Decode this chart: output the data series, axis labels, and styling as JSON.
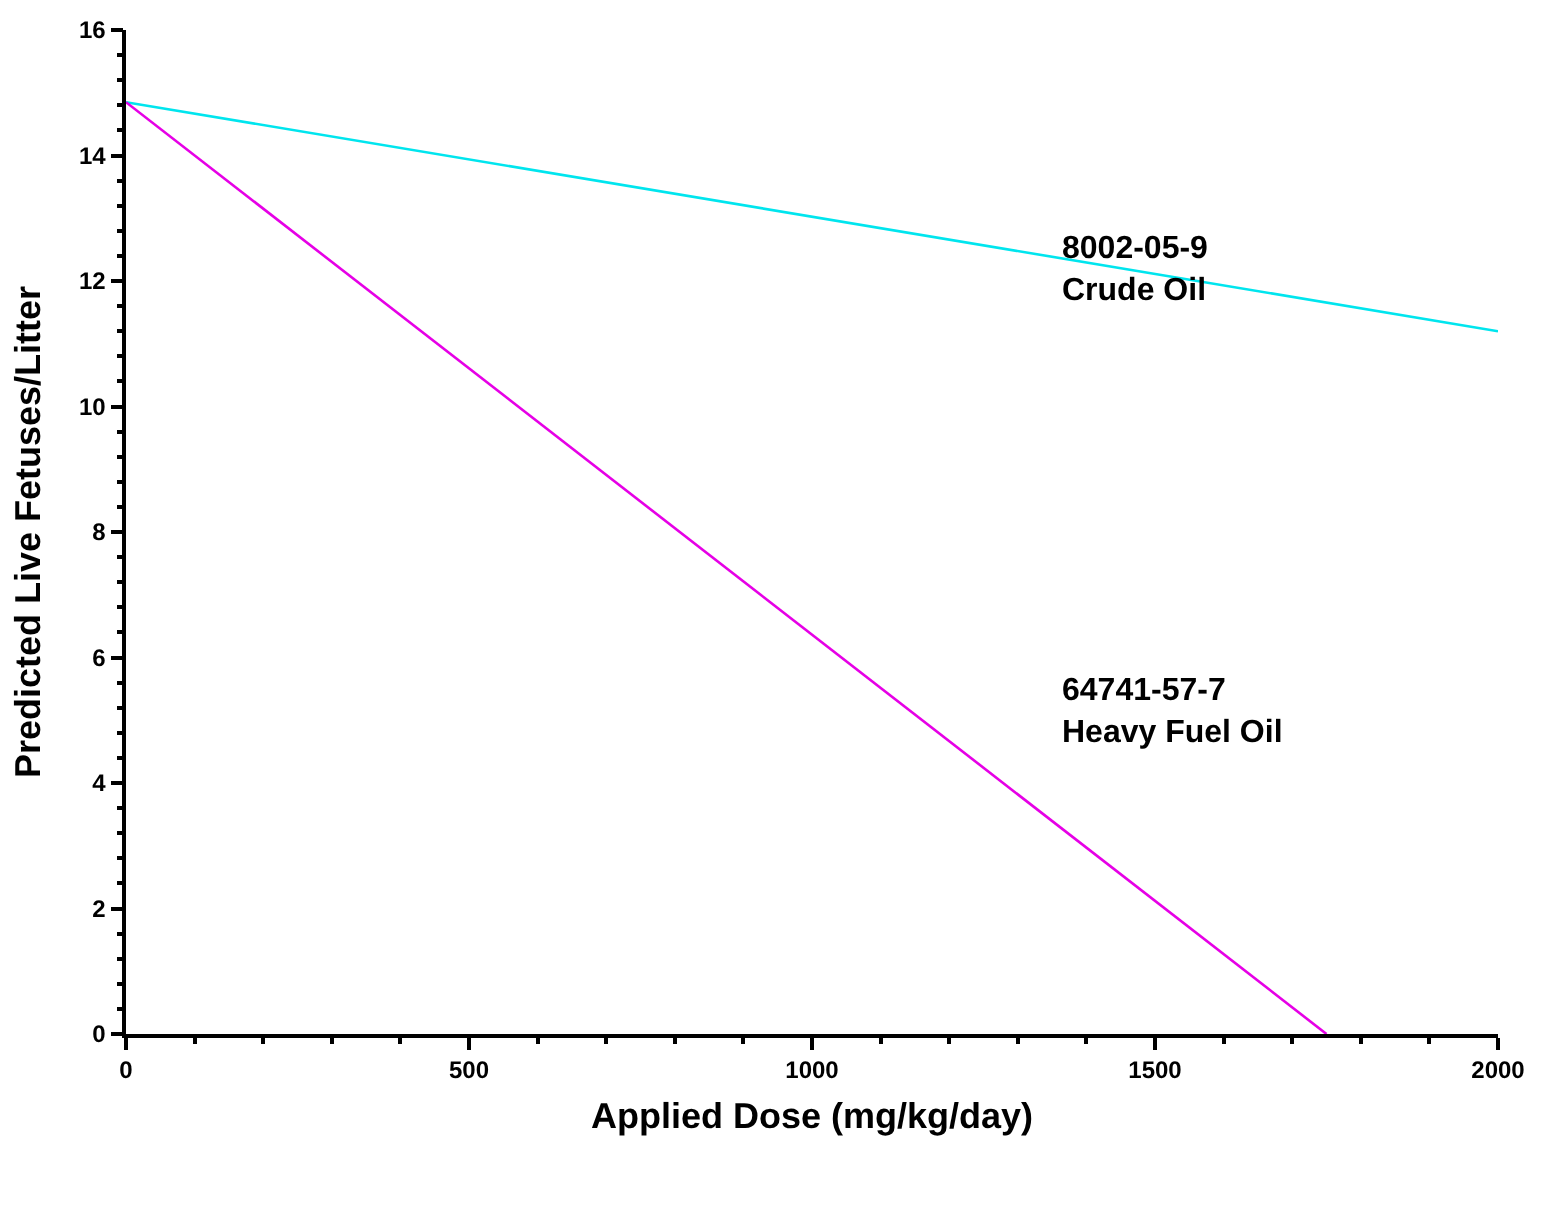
{
  "chart_data": {
    "type": "line",
    "xlabel": "Applied Dose (mg/kg/day)",
    "ylabel": "Predicted Live Fetuses/Litter",
    "x": [
      0,
      2000
    ],
    "series": [
      {
        "color": "#00e5ee",
        "values": [
          14.85,
          11.2
        ]
      },
      {
        "color": "#e600e6",
        "x": [
          0,
          1750
        ],
        "values": [
          14.85,
          0
        ]
      }
    ],
    "xlim": [
      0,
      2000
    ],
    "xticks": [
      0,
      500,
      1000,
      1500,
      2000
    ],
    "ylim": [
      0,
      16
    ],
    "yticks": [
      0,
      2,
      4,
      6,
      8,
      10,
      12,
      14,
      16
    ],
    "grid": false,
    "annotations": [
      "8002-05-9\nCrude Oil",
      "64741-57-7\nHeavy Fuel Oil"
    ]
  }
}
